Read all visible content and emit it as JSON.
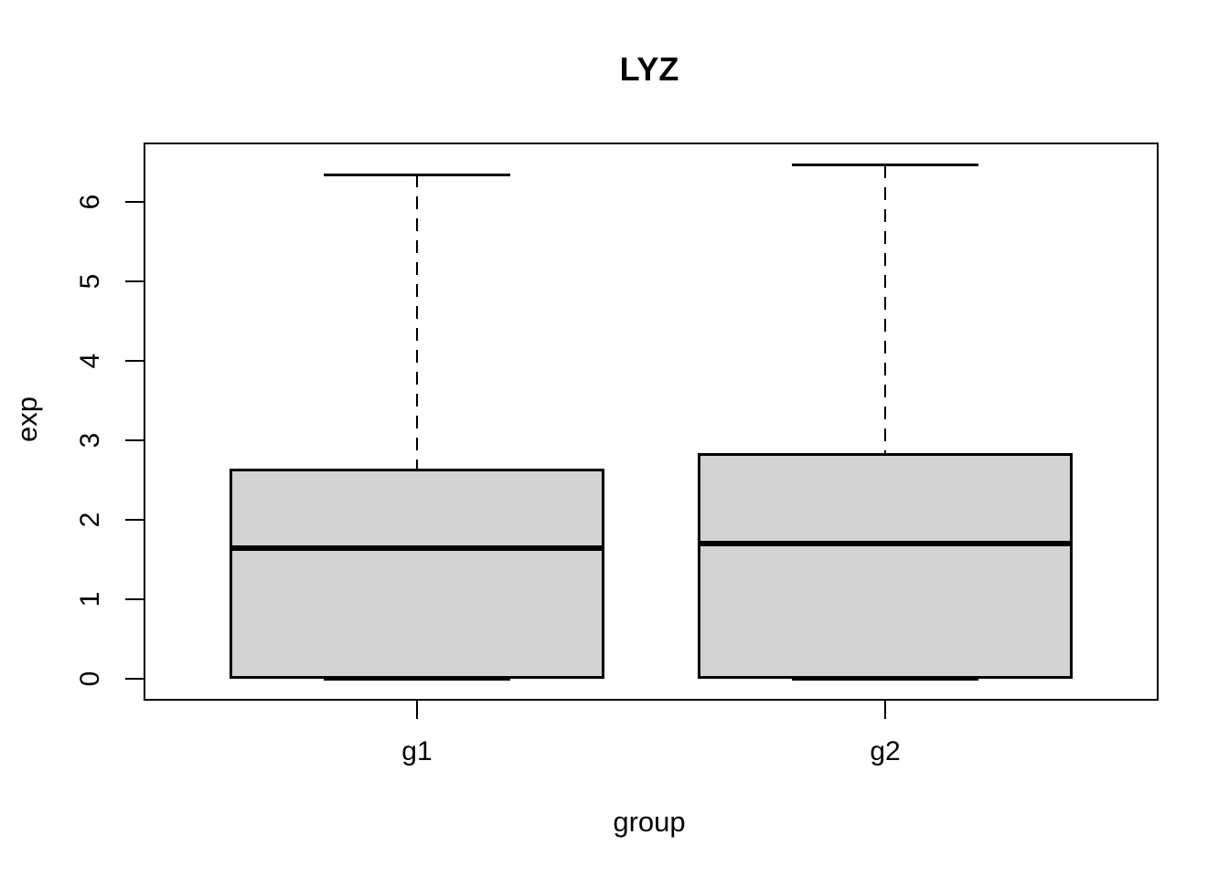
{
  "chart_data": {
    "type": "boxplot",
    "title": "LYZ",
    "xlabel": "group",
    "ylabel": "exp",
    "categories": [
      "g1",
      "g2"
    ],
    "series": [
      {
        "name": "g1",
        "x": 1,
        "min": 0,
        "q1": 0,
        "median": 1.64,
        "q3": 2.64,
        "max": 6.34
      },
      {
        "name": "g2",
        "x": 2,
        "min": 0,
        "q1": 0,
        "median": 1.7,
        "q3": 2.84,
        "max": 6.46
      }
    ],
    "yticks": [
      0,
      1,
      2,
      3,
      4,
      5,
      6
    ],
    "ylim": [
      -0.25,
      6.72
    ],
    "xlim": [
      0.42,
      2.58
    ],
    "box_width": 0.8,
    "cap_width": 0.4,
    "grid": false,
    "legend": "none",
    "colors": {
      "box_fill": "#d3d3d3",
      "line": "#000000",
      "background": "#ffffff"
    }
  }
}
